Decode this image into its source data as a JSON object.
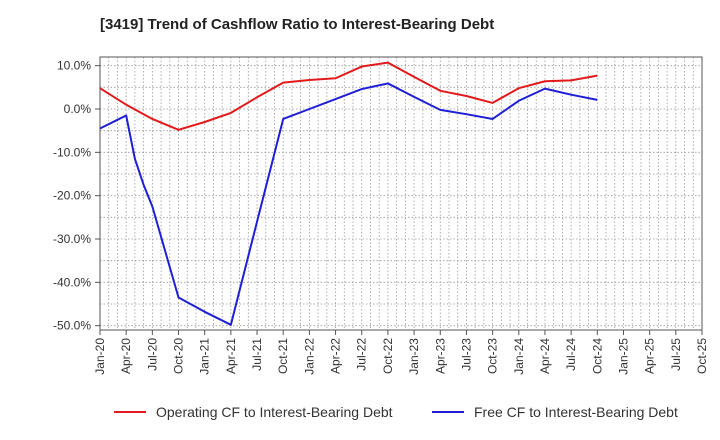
{
  "chart_data": {
    "type": "line",
    "title": "[3419]  Trend of Cashflow Ratio to Interest-Bearing Debt",
    "xlabel": "",
    "ylabel": "",
    "ylim": [
      -51,
      12
    ],
    "yticks": [
      10,
      0,
      -10,
      -20,
      -30,
      -40,
      -50
    ],
    "ytick_labels": [
      "10.0%",
      "0.0%",
      "-10.0%",
      "-20.0%",
      "-30.0%",
      "-40.0%",
      "-50.0%"
    ],
    "xtick_labels": [
      "Jan-20",
      "Apr-20",
      "Jul-20",
      "Oct-20",
      "Jan-21",
      "Apr-21",
      "Jul-21",
      "Oct-21",
      "Jan-22",
      "Apr-22",
      "Jul-22",
      "Oct-22",
      "Jan-23",
      "Apr-23",
      "Jul-23",
      "Oct-23",
      "Jan-24",
      "Apr-24",
      "Jul-24",
      "Oct-24",
      "Jan-25",
      "Apr-25",
      "Jul-25",
      "Oct-25"
    ],
    "grid": true,
    "legend_position": "bottom",
    "series": [
      {
        "name": "Operating CF to Interest-Bearing Debt",
        "color": "#e31a1c",
        "x": [
          "Jan-20",
          "Apr-20",
          "Jun-20",
          "Jul-20",
          "Oct-20",
          "Jan-21",
          "Apr-21",
          "Jul-21",
          "Oct-21",
          "Jan-22",
          "Apr-22",
          "Jul-22",
          "Oct-22",
          "Jan-23",
          "Apr-23",
          "Jul-23",
          "Oct-23",
          "Jan-24",
          "Apr-24",
          "Jul-24",
          "Oct-24"
        ],
        "values": [
          4.8,
          1.0,
          -1.2,
          -2.3,
          -4.8,
          -3.0,
          -0.9,
          2.7,
          6.1,
          6.7,
          7.1,
          9.8,
          10.7,
          7.4,
          4.2,
          3.0,
          1.4,
          4.8,
          6.4,
          6.6,
          7.7
        ]
      },
      {
        "name": "Free CF to Interest-Bearing Debt",
        "color": "#1f1fd6",
        "x": [
          "Jan-20",
          "Mar-20",
          "Apr-20",
          "May-20",
          "Jun-20",
          "Jul-20",
          "Oct-20",
          "Jan-21",
          "Apr-21",
          "Jul-21",
          "Oct-21",
          "Jan-22",
          "Apr-22",
          "Jul-22",
          "Oct-22",
          "Jan-23",
          "Apr-23",
          "Jul-23",
          "Oct-23",
          "Jan-24",
          "Apr-24",
          "Jul-24",
          "Oct-24"
        ],
        "values": [
          -4.5,
          -2.5,
          -1.5,
          -11.5,
          -17.5,
          -22.5,
          -43.5,
          -46.8,
          -49.8,
          -26.0,
          -2.3,
          0.0,
          2.3,
          4.6,
          5.9,
          2.8,
          -0.2,
          -1.2,
          -2.3,
          1.9,
          4.7,
          3.3,
          2.1
        ]
      }
    ]
  }
}
